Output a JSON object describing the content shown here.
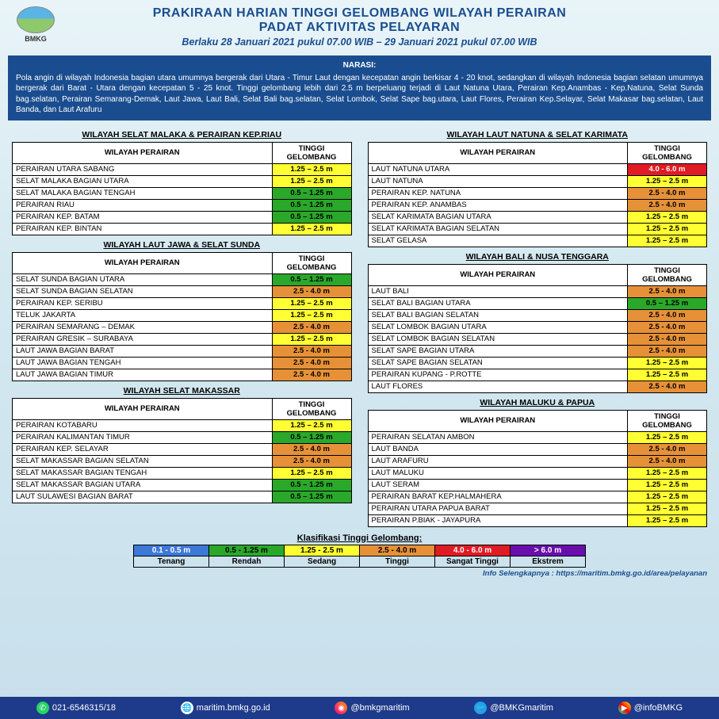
{
  "logo_text": "BMKG",
  "title1": "PRAKIRAAN HARIAN TINGGI GELOMBANG WILAYAH PERAIRAN",
  "title2": "PADAT AKTIVITAS PELAYARAN",
  "subtitle": "Berlaku 28 Januari 2021 pukul  07.00 WIB – 29 Januari 2021 pukul 07.00 WIB",
  "narasi_title": "NARASI:",
  "narasi_text": "Pola angin di wilayah Indonesia bagian utara umumnya bergerak dari Utara - Timur Laut dengan kecepatan angin berkisar 4 - 20 knot, sedangkan di wilayah Indonesia bagian selatan umumnya bergerak dari Barat - Utara dengan kecepatan 5 - 25 knot. Tinggi gelombang lebih dari 2.5 m berpeluang terjadi di Laut Natuna Utara, Perairan Kep.Anambas - Kep.Natuna, Selat Sunda bag.selatan, Perairan Semarang-Demak, Laut Jawa, Laut Bali, Selat Bali bag.selatan, Selat Lombok, Selat Sape bag.utara, Laut Flores, Perairan Kep.Selayar, Selat Makasar bag.selatan, Laut Banda, dan Laut Arafuru",
  "col_header1": "WILAYAH PERAIRAN",
  "col_header2": "TINGGI GELOMBANG",
  "height_labels": {
    "tenang": "0.1 - 0.5 m",
    "rendah": "0.5 – 1.25 m",
    "rendah2": "0.5 - 1.25 m",
    "sedang": "1.25 – 2.5 m",
    "sedang2": "1.25 - 2.5 m",
    "tinggi": "2.5 - 4.0 m",
    "sangat": "4.0 - 6.0 m",
    "ekstrem": "> 6.0 m"
  },
  "sections": {
    "malaka": {
      "title": "WILAYAH SELAT MALAKA & PERAIRAN KEP.RIAU",
      "rows": [
        {
          "name": "PERAIRAN UTARA SABANG",
          "h": "1.25 – 2.5 m",
          "c": "c-sedang"
        },
        {
          "name": "SELAT MALAKA BAGIAN UTARA",
          "h": "1.25 – 2.5 m",
          "c": "c-sedang"
        },
        {
          "name": "SELAT MALAKA BAGIAN TENGAH",
          "h": "0.5 – 1.25 m",
          "c": "c-rendah"
        },
        {
          "name": "PERAIRAN RIAU",
          "h": "0.5 – 1.25 m",
          "c": "c-rendah"
        },
        {
          "name": "PERAIRAN KEP. BATAM",
          "h": "0.5 – 1.25 m",
          "c": "c-rendah"
        },
        {
          "name": "PERAIRAN KEP. BINTAN",
          "h": "1.25 – 2.5 m",
          "c": "c-sedang"
        }
      ]
    },
    "jawa": {
      "title": "WILAYAH LAUT JAWA & SELAT SUNDA",
      "rows": [
        {
          "name": "SELAT SUNDA BAGIAN UTARA",
          "h": "0.5 – 1.25 m",
          "c": "c-rendah"
        },
        {
          "name": "SELAT SUNDA BAGIAN SELATAN",
          "h": "2.5 - 4.0 m",
          "c": "c-tinggi"
        },
        {
          "name": "PERAIRAN KEP. SERIBU",
          "h": "1.25 – 2.5 m",
          "c": "c-sedang"
        },
        {
          "name": "TELUK JAKARTA",
          "h": "1.25 – 2.5 m",
          "c": "c-sedang"
        },
        {
          "name": "PERAIRAN SEMARANG – DEMAK",
          "h": "2.5 - 4.0 m",
          "c": "c-tinggi"
        },
        {
          "name": "PERAIRAN GRESIK – SURABAYA",
          "h": "1.25 – 2.5 m",
          "c": "c-sedang"
        },
        {
          "name": "LAUT JAWA BAGIAN BARAT",
          "h": "2.5 - 4.0 m",
          "c": "c-tinggi"
        },
        {
          "name": "LAUT JAWA BAGIAN TENGAH",
          "h": "2.5 - 4.0 m",
          "c": "c-tinggi"
        },
        {
          "name": "LAUT JAWA BAGIAN TIMUR",
          "h": "2.5 - 4.0 m",
          "c": "c-tinggi"
        }
      ]
    },
    "makassar": {
      "title": "WILAYAH SELAT MAKASSAR",
      "rows": [
        {
          "name": "PERAIRAN KOTABARU",
          "h": "1.25 – 2.5 m",
          "c": "c-sedang"
        },
        {
          "name": "PERAIRAN KALIMANTAN TIMUR",
          "h": "0.5 – 1.25 m",
          "c": "c-rendah"
        },
        {
          "name": "PERAIRAN KEP. SELAYAR",
          "h": "2.5 - 4.0 m",
          "c": "c-tinggi"
        },
        {
          "name": "SELAT MAKASSAR BAGIAN SELATAN",
          "h": "2.5 - 4.0 m",
          "c": "c-tinggi"
        },
        {
          "name": "SELAT MAKASSAR BAGIAN TENGAH",
          "h": "1.25 – 2.5 m",
          "c": "c-sedang"
        },
        {
          "name": "SELAT MAKASSAR BAGIAN UTARA",
          "h": "0.5 – 1.25 m",
          "c": "c-rendah"
        },
        {
          "name": "LAUT SULAWESI BAGIAN BARAT",
          "h": "0.5 – 1.25 m",
          "c": "c-rendah"
        }
      ]
    },
    "natuna": {
      "title": "WILAYAH LAUT NATUNA & SELAT KARIMATA",
      "rows": [
        {
          "name": "LAUT NATUNA UTARA",
          "h": "4.0 - 6.0 m",
          "c": "c-sangat"
        },
        {
          "name": "LAUT NATUNA",
          "h": "1.25 – 2.5 m",
          "c": "c-sedang"
        },
        {
          "name": "PERAIRAN KEP. NATUNA",
          "h": "2.5 - 4.0 m",
          "c": "c-tinggi"
        },
        {
          "name": "PERAIRAN KEP. ANAMBAS",
          "h": "2.5 - 4.0 m",
          "c": "c-tinggi"
        },
        {
          "name": "SELAT KARIMATA BAGIAN UTARA",
          "h": "1.25 – 2.5 m",
          "c": "c-sedang"
        },
        {
          "name": "SELAT KARIMATA BAGIAN SELATAN",
          "h": "1.25 – 2.5 m",
          "c": "c-sedang"
        },
        {
          "name": "SELAT GELASA",
          "h": "1.25 – 2.5 m",
          "c": "c-sedang"
        }
      ]
    },
    "bali": {
      "title": "WILAYAH BALI & NUSA TENGGARA",
      "rows": [
        {
          "name": "LAUT BALI",
          "h": "2.5 - 4.0 m",
          "c": "c-tinggi"
        },
        {
          "name": "SELAT BALI BAGIAN UTARA",
          "h": "0.5 – 1.25 m",
          "c": "c-rendah"
        },
        {
          "name": "SELAT BALI BAGIAN SELATAN",
          "h": "2.5 - 4.0 m",
          "c": "c-tinggi"
        },
        {
          "name": "SELAT LOMBOK BAGIAN UTARA",
          "h": "2.5 - 4.0 m",
          "c": "c-tinggi"
        },
        {
          "name": "SELAT LOMBOK BAGIAN SELATAN",
          "h": "2.5 - 4.0 m",
          "c": "c-tinggi"
        },
        {
          "name": "SELAT SAPE BAGIAN UTARA",
          "h": "2.5 - 4.0 m",
          "c": "c-tinggi"
        },
        {
          "name": "SELAT SAPE BAGIAN SELATAN",
          "h": "1.25 – 2.5 m",
          "c": "c-sedang"
        },
        {
          "name": "PERAIRAN KUPANG - P.ROTTE",
          "h": "1.25 – 2.5 m",
          "c": "c-sedang"
        },
        {
          "name": "LAUT FLORES",
          "h": "2.5 - 4.0 m",
          "c": "c-tinggi"
        }
      ]
    },
    "maluku": {
      "title": "WILAYAH MALUKU & PAPUA",
      "rows": [
        {
          "name": "PERAIRAN SELATAN AMBON",
          "h": "1.25 – 2.5 m",
          "c": "c-sedang"
        },
        {
          "name": "LAUT BANDA",
          "h": "2.5 - 4.0 m",
          "c": "c-tinggi"
        },
        {
          "name": "LAUT ARAFURU",
          "h": "2.5 - 4.0 m",
          "c": "c-tinggi"
        },
        {
          "name": "LAUT MALUKU",
          "h": "1.25 – 2.5 m",
          "c": "c-sedang"
        },
        {
          "name": "LAUT SERAM",
          "h": "1.25 – 2.5 m",
          "c": "c-sedang"
        },
        {
          "name": "PERAIRAN BARAT KEP.HALMAHERA",
          "h": "1.25 – 2.5 m",
          "c": "c-sedang"
        },
        {
          "name": "PERAIRAN UTARA PAPUA BARAT",
          "h": "1.25 – 2.5 m",
          "c": "c-sedang"
        },
        {
          "name": "PERAIRAN P.BIAK - JAYAPURA",
          "h": "1.25 – 2.5 m",
          "c": "c-sedang"
        }
      ]
    }
  },
  "legend_title": "Klasifikasi Tinggi Gelombang:",
  "legend": [
    {
      "range": "0.1 - 0.5 m",
      "label": "Tenang",
      "c": "c-tenang"
    },
    {
      "range": "0.5 - 1.25 m",
      "label": "Rendah",
      "c": "c-rendah"
    },
    {
      "range": "1.25 - 2.5 m",
      "label": "Sedang",
      "c": "c-sedang"
    },
    {
      "range": "2.5 - 4.0 m",
      "label": "Tinggi",
      "c": "c-tinggi"
    },
    {
      "range": "4.0 - 6.0 m",
      "label": "Sangat Tinggi",
      "c": "c-sangat"
    },
    {
      "range": "> 6.0 m",
      "label": "Ekstrem",
      "c": "c-ekstrem"
    }
  ],
  "info_link": "Info Selengkapnya : https://maritim.bmkg.go.id/area/pelayanan",
  "footer": {
    "phone": "021-6546315/18",
    "web": "maritim.bmkg.go.id",
    "ig": "@bmkgmaritim",
    "tw": "@BMKGmaritim",
    "play": "@infoBMKG"
  }
}
